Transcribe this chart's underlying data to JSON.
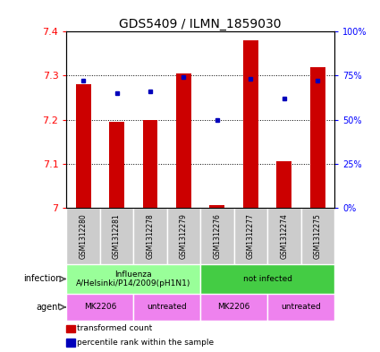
{
  "title": "GDS5409 / ILMN_1859030",
  "samples": [
    "GSM1312280",
    "GSM1312281",
    "GSM1312278",
    "GSM1312279",
    "GSM1312276",
    "GSM1312277",
    "GSM1312274",
    "GSM1312275"
  ],
  "red_values": [
    7.28,
    7.195,
    7.2,
    7.305,
    7.005,
    7.38,
    7.105,
    7.32
  ],
  "blue_values": [
    72,
    65,
    66,
    74,
    50,
    73,
    62,
    72
  ],
  "ylim": [
    7.0,
    7.4
  ],
  "yticks_left": [
    7.0,
    7.1,
    7.2,
    7.3,
    7.4
  ],
  "ytick_left_labels": [
    "7",
    "7.1",
    "7.2",
    "7.3",
    "7.4"
  ],
  "yticks_right": [
    0,
    25,
    50,
    75,
    100
  ],
  "ytick_right_labels": [
    "0%",
    "25%",
    "50%",
    "75%",
    "100%"
  ],
  "infection_groups": [
    {
      "label": "Influenza\nA/Helsinki/P14/2009(pH1N1)",
      "start": 0,
      "end": 4,
      "color": "#99FF99"
    },
    {
      "label": "not infected",
      "start": 4,
      "end": 8,
      "color": "#44CC44"
    }
  ],
  "agent_groups": [
    {
      "label": "MK2206",
      "start": 0,
      "end": 2,
      "color": "#EE82EE"
    },
    {
      "label": "untreated",
      "start": 2,
      "end": 4,
      "color": "#EE82EE"
    },
    {
      "label": "MK2206",
      "start": 4,
      "end": 6,
      "color": "#EE82EE"
    },
    {
      "label": "untreated",
      "start": 6,
      "end": 8,
      "color": "#EE82EE"
    }
  ],
  "bar_color": "#CC0000",
  "dot_color": "#0000BB",
  "bar_width": 0.45,
  "title_fontsize": 10,
  "tick_fontsize": 8,
  "sample_fontsize": 5.5,
  "annot_fontsize": 7,
  "legend_items": [
    {
      "label": "transformed count",
      "color": "#CC0000"
    },
    {
      "label": "percentile rank within the sample",
      "color": "#0000BB"
    }
  ]
}
